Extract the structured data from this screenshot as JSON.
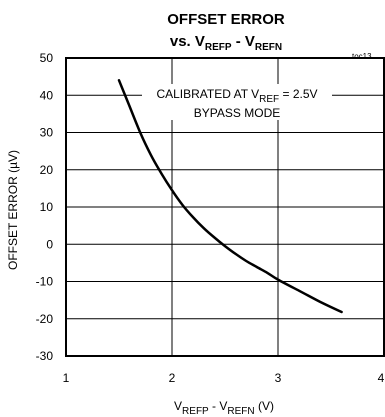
{
  "chart_data": {
    "type": "line",
    "title": {
      "main": "OFFSET ERROR",
      "vs": "vs. V",
      "sub1": "REFP",
      "dash": " - V",
      "sub2": "REFN"
    },
    "tag": "toc13",
    "ylabel": "OFFSET ERROR (µV)",
    "xlabel": {
      "v1": "V",
      "sub1": "REFP",
      "mid": " - V",
      "sub2": "REFN",
      "unit": " (V)"
    },
    "xlim": [
      1,
      4
    ],
    "ylim": [
      -30,
      50
    ],
    "x_ticks": [
      1,
      2,
      3,
      4
    ],
    "y_ticks": [
      50,
      40,
      30,
      20,
      10,
      0,
      -10,
      -20,
      -30
    ],
    "grid": true,
    "annotation": {
      "line1_prefix": "CALIBRATED AT V",
      "line1_sub": "REF",
      "line1_suffix": " = 2.5V",
      "line2": "BYPASS MODE"
    },
    "series": [
      {
        "x": [
          1.5,
          1.6,
          1.7,
          1.8,
          1.9,
          2.0,
          2.1,
          2.2,
          2.3,
          2.4,
          2.5,
          2.6,
          2.7,
          2.8,
          2.9,
          3.0,
          3.2,
          3.4,
          3.6
        ],
        "values": [
          44,
          37,
          30,
          24,
          19,
          14.5,
          10.5,
          7.2,
          4.3,
          1.8,
          -0.5,
          -2.6,
          -4.5,
          -6.1,
          -7.7,
          -9.5,
          -12.5,
          -15.5,
          -18.2
        ],
        "color": "#000000"
      }
    ]
  }
}
